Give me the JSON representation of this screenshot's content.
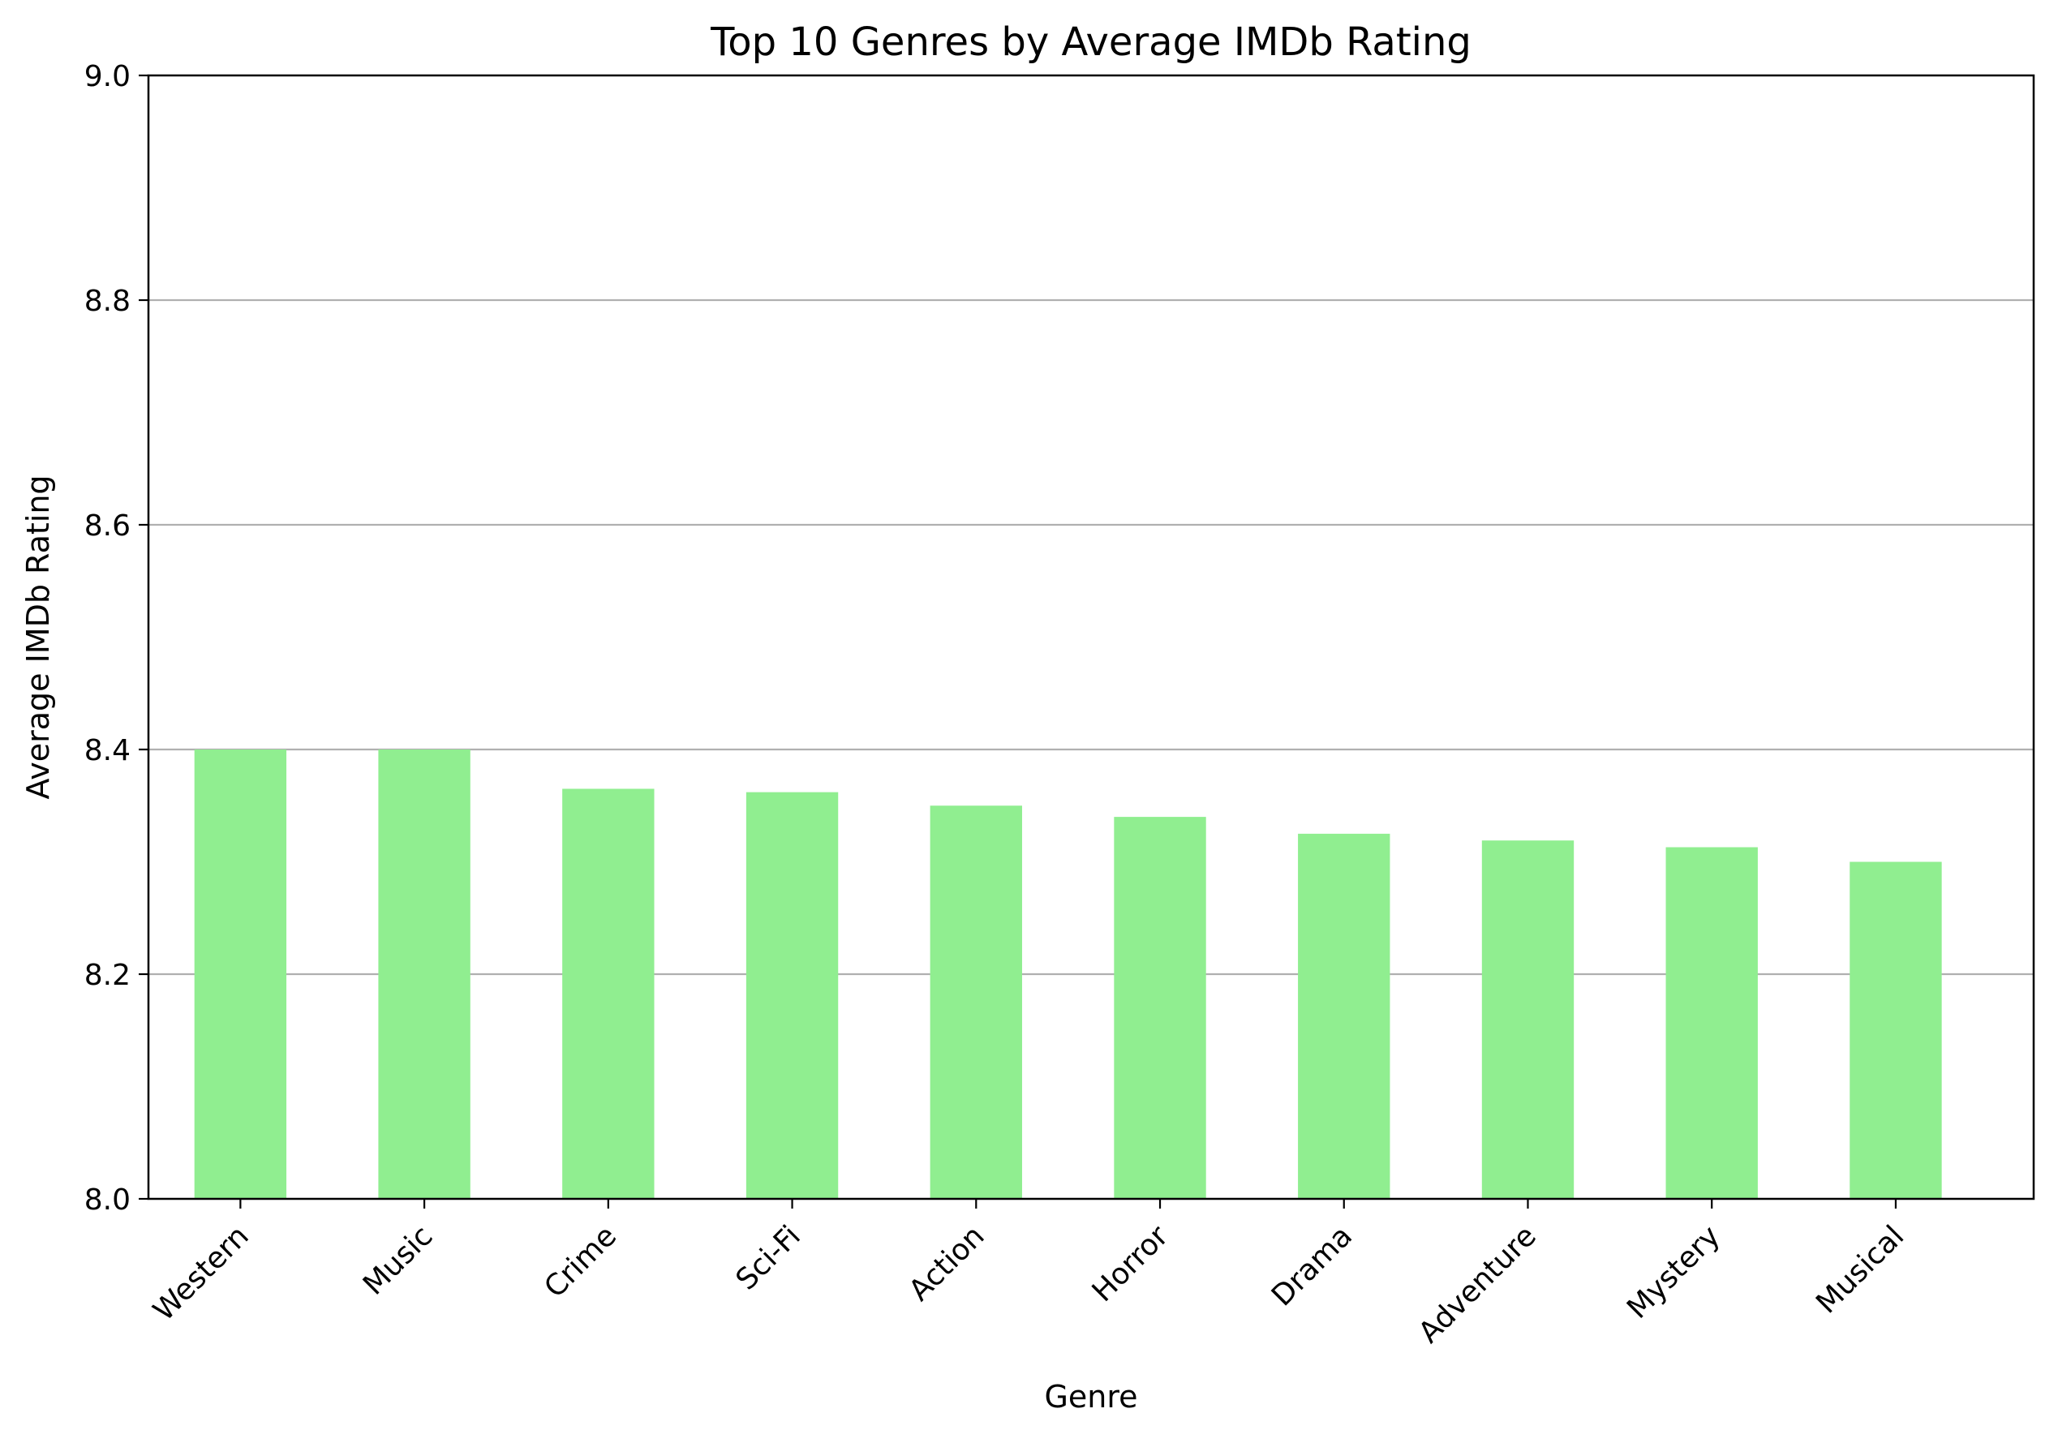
{
  "chart_data": {
    "type": "bar",
    "title": "Top 10 Genres by Average IMDb Rating",
    "xlabel": "Genre",
    "ylabel": "Average IMDb Rating",
    "categories": [
      "Western",
      "Music",
      "Crime",
      "Sci-Fi",
      "Action",
      "Horror",
      "Drama",
      "Adventure",
      "Mystery",
      "Musical"
    ],
    "values": [
      8.4,
      8.4,
      8.365,
      8.362,
      8.35,
      8.34,
      8.325,
      8.319,
      8.313,
      8.3
    ],
    "ylim": [
      8.0,
      9.0
    ],
    "yticks": [
      "8.0",
      "8.2",
      "8.4",
      "8.6",
      "8.8",
      "9.0"
    ],
    "grid": "y",
    "bar_color": "#90ee90",
    "legend": "none"
  }
}
